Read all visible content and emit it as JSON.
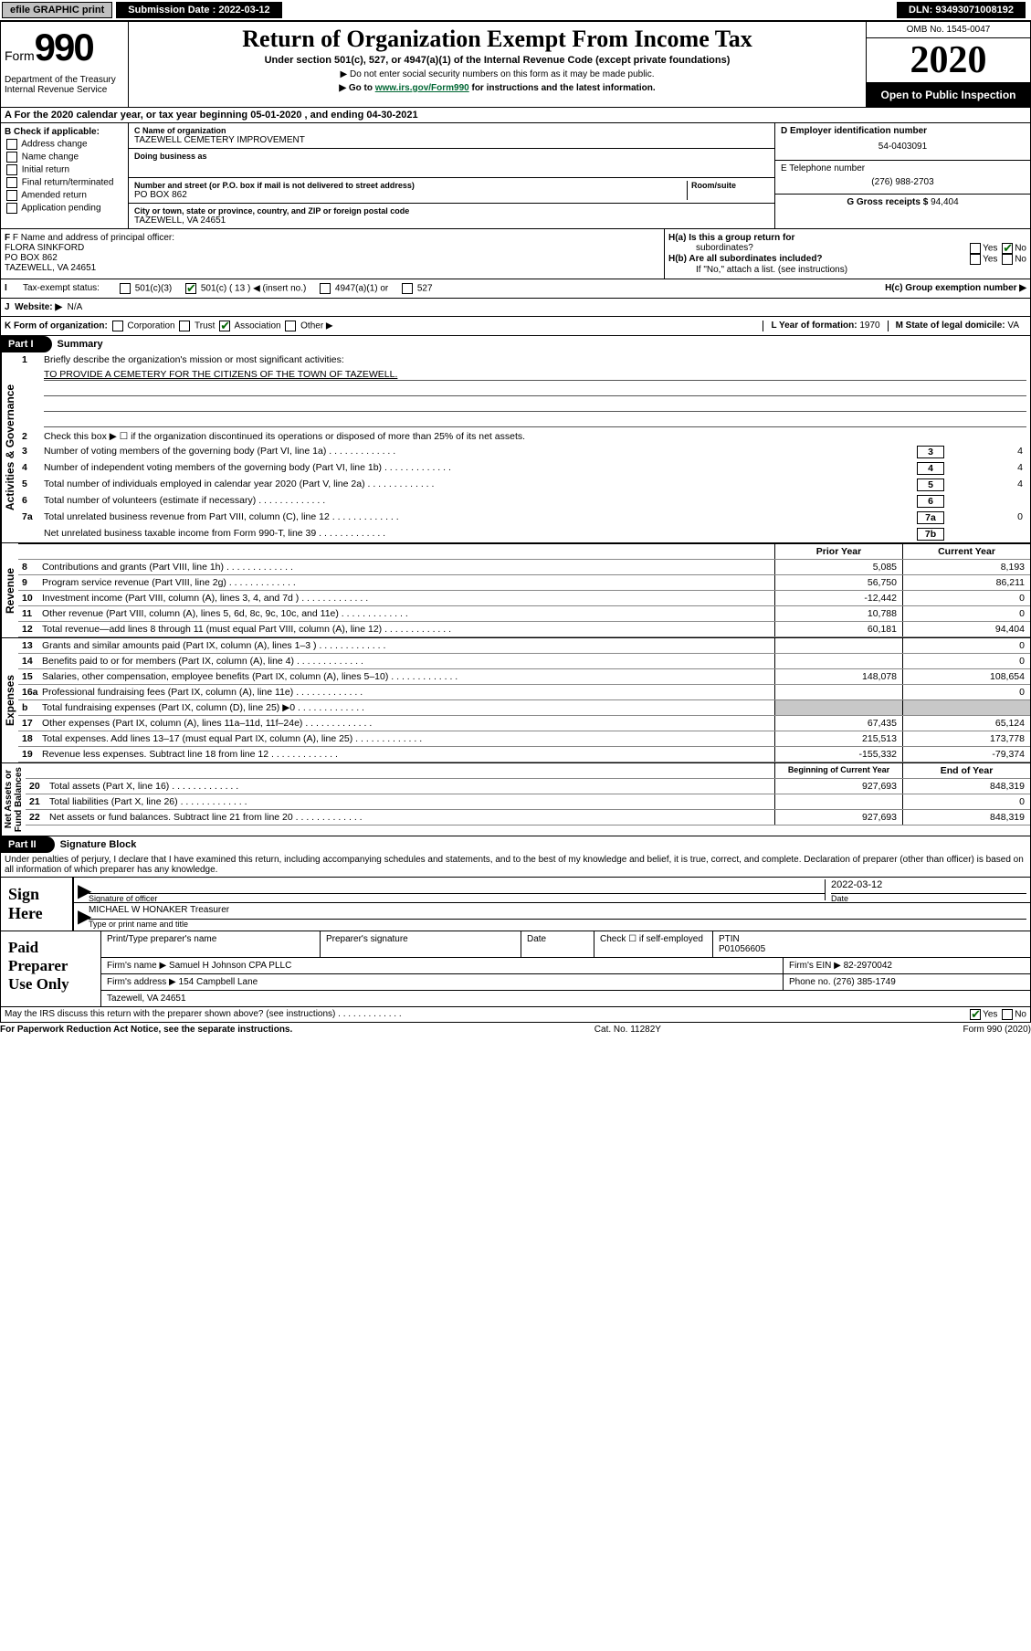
{
  "top": {
    "efile": "efile GRAPHIC print",
    "sub_label": "Submission Date :",
    "sub_date": "2022-03-12",
    "dln_label": "DLN:",
    "dln": "93493071008192"
  },
  "header": {
    "form_word": "Form",
    "form_num": "990",
    "dept": "Department of the Treasury\nInternal Revenue Service",
    "title": "Return of Organization Exempt From Income Tax",
    "subtitle": "Under section 501(c), 527, or 4947(a)(1) of the Internal Revenue Code (except private foundations)",
    "inst1": "▶ Do not enter social security numbers on this form as it may be made public.",
    "inst2_prefix": "▶ Go to ",
    "inst2_link": "www.irs.gov/Form990",
    "inst2_suffix": " for instructions and the latest information.",
    "omb": "OMB No. 1545-0047",
    "year": "2020",
    "open": "Open to Public Inspection"
  },
  "a_line": "For the 2020 calendar year, or tax year beginning 05-01-2020    , and ending 04-30-2021",
  "b": {
    "header": "B Check if applicable:",
    "items": [
      "Address change",
      "Name change",
      "Initial return",
      "Final return/terminated",
      "Amended return",
      "Application pending"
    ]
  },
  "c": {
    "name_label": "C Name of organization",
    "name": "TAZEWELL CEMETERY IMPROVEMENT",
    "dba_label": "Doing business as",
    "dba": "",
    "street_label": "Number and street (or P.O. box if mail is not delivered to street address)",
    "room_label": "Room/suite",
    "street": "PO BOX 862",
    "city_label": "City or town, state or province, country, and ZIP or foreign postal code",
    "city": "TAZEWELL, VA  24651"
  },
  "d": {
    "ein_label": "D Employer identification number",
    "ein": "54-0403091",
    "tel_label": "E Telephone number",
    "tel": "(276) 988-2703",
    "gross_label": "G Gross receipts $",
    "gross": "94,404"
  },
  "f": {
    "label": "F  Name and address of principal officer:",
    "name": "FLORA SINKFORD",
    "street": "PO BOX 862",
    "city": "TAZEWELL, VA  24651"
  },
  "h": {
    "a_label": "H(a)  Is this a group return for",
    "a_sub": "subordinates?",
    "b_label": "H(b)  Are all subordinates included?",
    "note": "If \"No,\" attach a list. (see instructions)",
    "c_label": "H(c)  Group exemption number ▶"
  },
  "i": {
    "label": "Tax-exempt status:",
    "c13": "501(c) ( 13 ) ◀ (insert no.)"
  },
  "j": {
    "label": "Website: ▶",
    "value": "N/A"
  },
  "k": {
    "label": "K Form of organization:",
    "opts": [
      "Corporation",
      "Trust",
      "Association",
      "Other ▶"
    ],
    "l_label": "L Year of formation:",
    "l_val": "1970",
    "m_label": "M State of legal domicile:",
    "m_val": "VA"
  },
  "part1": {
    "label": "Part I",
    "title": "Summary"
  },
  "summary": {
    "l1": "Briefly describe the organization's mission or most significant activities:",
    "l1_val": "TO PROVIDE A CEMETERY FOR THE CITIZENS OF THE TOWN OF TAZEWELL.",
    "l2": "Check this box ▶ ☐  if the organization discontinued its operations or disposed of more than 25% of its net assets.",
    "l3": "Number of voting members of the governing body (Part VI, line 1a)",
    "l4": "Number of independent voting members of the governing body (Part VI, line 1b)",
    "l5": "Total number of individuals employed in calendar year 2020 (Part V, line 2a)",
    "l6": "Total number of volunteers (estimate if necessary)",
    "l7a": "Total unrelated business revenue from Part VIII, column (C), line 12",
    "l7b": "Net unrelated business taxable income from Form 990-T, line 39",
    "v3": "4",
    "v4": "4",
    "v5": "4",
    "v6": "",
    "v7a": "0",
    "v7b": ""
  },
  "cols": {
    "prior": "Prior Year",
    "current": "Current Year",
    "boy": "Beginning of Current Year",
    "eoy": "End of Year"
  },
  "revenue": [
    {
      "n": "8",
      "t": "Contributions and grants (Part VIII, line 1h)",
      "p": "5,085",
      "c": "8,193"
    },
    {
      "n": "9",
      "t": "Program service revenue (Part VIII, line 2g)",
      "p": "56,750",
      "c": "86,211"
    },
    {
      "n": "10",
      "t": "Investment income (Part VIII, column (A), lines 3, 4, and 7d )",
      "p": "-12,442",
      "c": "0"
    },
    {
      "n": "11",
      "t": "Other revenue (Part VIII, column (A), lines 5, 6d, 8c, 9c, 10c, and 11e)",
      "p": "10,788",
      "c": "0"
    },
    {
      "n": "12",
      "t": "Total revenue—add lines 8 through 11 (must equal Part VIII, column (A), line 12)",
      "p": "60,181",
      "c": "94,404"
    }
  ],
  "expenses": [
    {
      "n": "13",
      "t": "Grants and similar amounts paid (Part IX, column (A), lines 1–3 )",
      "p": "",
      "c": "0"
    },
    {
      "n": "14",
      "t": "Benefits paid to or for members (Part IX, column (A), line 4)",
      "p": "",
      "c": "0"
    },
    {
      "n": "15",
      "t": "Salaries, other compensation, employee benefits (Part IX, column (A), lines 5–10)",
      "p": "148,078",
      "c": "108,654"
    },
    {
      "n": "16a",
      "t": "Professional fundraising fees (Part IX, column (A), line 11e)",
      "p": "",
      "c": "0"
    },
    {
      "n": "b",
      "t": "Total fundraising expenses (Part IX, column (D), line 25) ▶0",
      "p": "GRAY",
      "c": "GRAY"
    },
    {
      "n": "17",
      "t": "Other expenses (Part IX, column (A), lines 11a–11d, 11f–24e)",
      "p": "67,435",
      "c": "65,124"
    },
    {
      "n": "18",
      "t": "Total expenses. Add lines 13–17 (must equal Part IX, column (A), line 25)",
      "p": "215,513",
      "c": "173,778"
    },
    {
      "n": "19",
      "t": "Revenue less expenses. Subtract line 18 from line 12",
      "p": "-155,332",
      "c": "-79,374"
    }
  ],
  "netassets": [
    {
      "n": "20",
      "t": "Total assets (Part X, line 16)",
      "p": "927,693",
      "c": "848,319"
    },
    {
      "n": "21",
      "t": "Total liabilities (Part X, line 26)",
      "p": "",
      "c": "0"
    },
    {
      "n": "22",
      "t": "Net assets or fund balances. Subtract line 21 from line 20",
      "p": "927,693",
      "c": "848,319"
    }
  ],
  "part2": {
    "label": "Part II",
    "title": "Signature Block"
  },
  "penalty": "Under penalties of perjury, I declare that I have examined this return, including accompanying schedules and statements, and to the best of my knowledge and belief, it is true, correct, and complete. Declaration of preparer (other than officer) is based on all information of which preparer has any knowledge.",
  "sign": {
    "label": "Sign Here",
    "sig_of": "Signature of officer",
    "date": "2022-03-12",
    "date_label": "Date",
    "name": "MICHAEL W HONAKER Treasurer",
    "name_label": "Type or print name and title"
  },
  "paid": {
    "label": "Paid Preparer Use Only",
    "h1": "Print/Type preparer's name",
    "h2": "Preparer's signature",
    "h3": "Date",
    "h4": "Check ☐ if self-employed",
    "h5_label": "PTIN",
    "h5": "P01056605",
    "firm_label": "Firm's name    ▶",
    "firm": "Samuel H Johnson CPA PLLC",
    "ein_label": "Firm's EIN ▶",
    "ein": "82-2970042",
    "addr_label": "Firm's address ▶",
    "addr1": "154 Campbell Lane",
    "addr2": "Tazewell, VA  24651",
    "phone_label": "Phone no.",
    "phone": "(276) 385-1749"
  },
  "discuss": "May the IRS discuss this return with the preparer shown above? (see instructions)",
  "footer": {
    "left": "For Paperwork Reduction Act Notice, see the separate instructions.",
    "mid": "Cat. No. 11282Y",
    "right": "Form 990 (2020)"
  }
}
